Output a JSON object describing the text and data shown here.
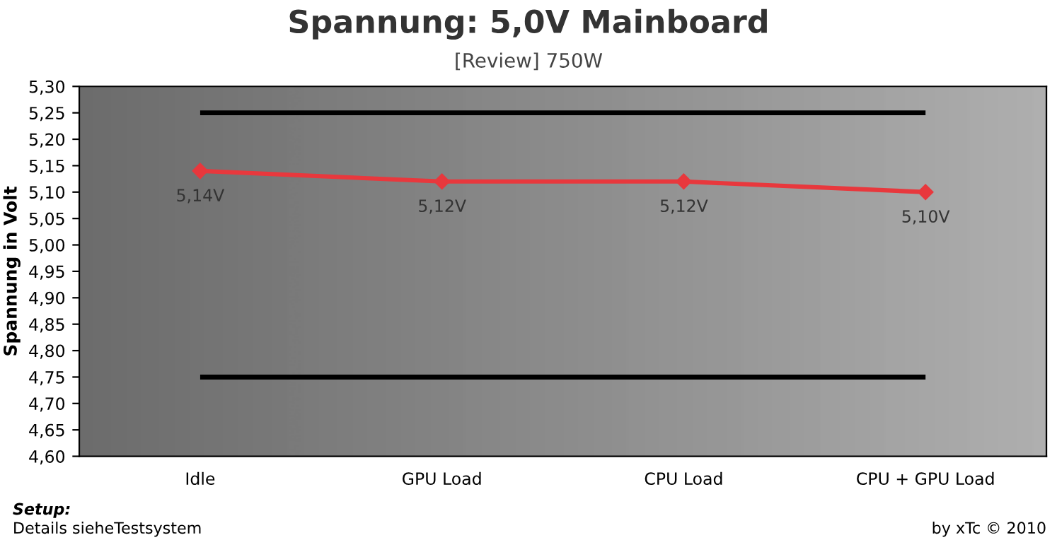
{
  "chart_data": {
    "type": "line",
    "title": "Spannung: 5,0V Mainboard",
    "subtitle": "[Review] 750W",
    "ylabel": "Spannung in Volt",
    "categories": [
      "Idle",
      "GPU Load",
      "CPU Load",
      "CPU + GPU Load"
    ],
    "series": [
      {
        "color": "#e8383d",
        "values": [
          5.14,
          5.12,
          5.12,
          5.1
        ],
        "value_labels": [
          "5,14V",
          "5,12V",
          "5,12V",
          "5,10V"
        ]
      }
    ],
    "marker": "diamond",
    "ylim": [
      4.6,
      5.3
    ],
    "yticks": [
      {
        "value": 4.6,
        "label": "4,60"
      },
      {
        "value": 4.65,
        "label": "4,65"
      },
      {
        "value": 4.7,
        "label": "4,70"
      },
      {
        "value": 4.75,
        "label": "4,75"
      },
      {
        "value": 4.8,
        "label": "4,80"
      },
      {
        "value": 4.85,
        "label": "4,85"
      },
      {
        "value": 4.9,
        "label": "4,90"
      },
      {
        "value": 4.95,
        "label": "4,95"
      },
      {
        "value": 5.0,
        "label": "5,00"
      },
      {
        "value": 5.05,
        "label": "5,05"
      },
      {
        "value": 5.1,
        "label": "5,10"
      },
      {
        "value": 5.15,
        "label": "5,15"
      },
      {
        "value": 5.2,
        "label": "5,20"
      },
      {
        "value": 5.25,
        "label": "5,25"
      },
      {
        "value": 5.3,
        "label": "5,30"
      }
    ],
    "ref_lines": [
      {
        "axis": "y",
        "value": 5.25,
        "color": "#000000"
      },
      {
        "axis": "y",
        "value": 4.75,
        "color": "#000000"
      }
    ],
    "annotations": [
      "Setup:",
      "Details sieheTestsystem",
      "by xTc © 2010"
    ]
  }
}
